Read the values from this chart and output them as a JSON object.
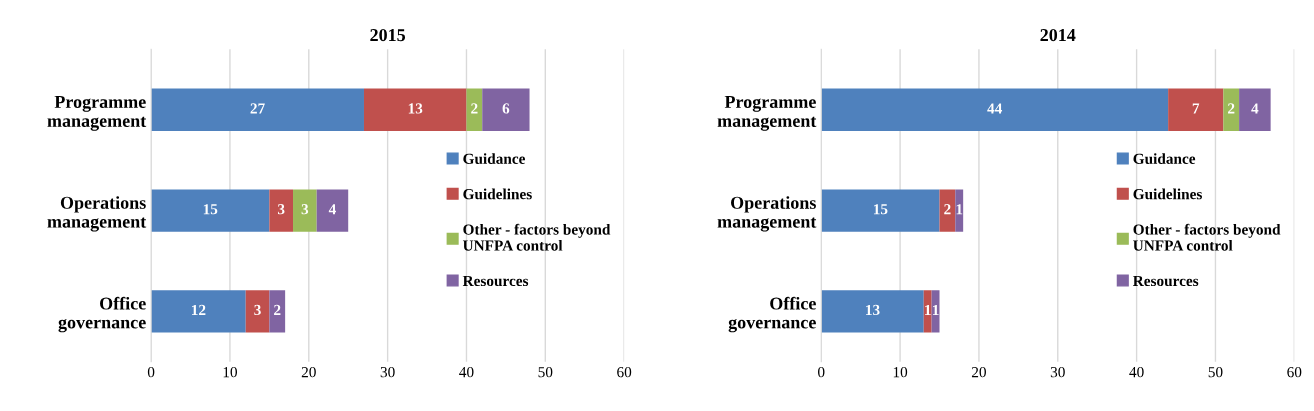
{
  "chart_data": [
    {
      "type": "bar",
      "orientation": "horizontal",
      "stacked": true,
      "title": "2015",
      "categories": [
        "Programme\nmanagement",
        "Operations\nmanagement",
        "Office\ngovernance"
      ],
      "xlim": [
        0,
        60
      ],
      "xticks": [
        0,
        10,
        20,
        30,
        40,
        50,
        60
      ],
      "grid": "x",
      "legend": "right",
      "data_labels": true,
      "series": [
        {
          "name": "Guidance",
          "color": "#4f81bd",
          "values": [
            27,
            15,
            12
          ]
        },
        {
          "name": "Guidelines",
          "color": "#c0504d",
          "values": [
            13,
            3,
            3
          ]
        },
        {
          "name": "Other - factors beyond\nUNFPA control",
          "color": "#9bbb59",
          "values": [
            2,
            3,
            null
          ]
        },
        {
          "name": "Resources",
          "color": "#8064a2",
          "values": [
            6,
            4,
            2
          ]
        }
      ]
    },
    {
      "type": "bar",
      "orientation": "horizontal",
      "stacked": true,
      "title": "2014",
      "categories": [
        "Programme\nmanagement",
        "Operations\nmanagement",
        "Office\ngovernance"
      ],
      "xlim": [
        0,
        60
      ],
      "xticks": [
        0,
        10,
        20,
        30,
        40,
        50,
        60
      ],
      "grid": "x",
      "legend": "right",
      "data_labels": true,
      "series": [
        {
          "name": "Guidance",
          "color": "#4f81bd",
          "values": [
            44,
            15,
            13
          ]
        },
        {
          "name": "Guidelines",
          "color": "#c0504d",
          "values": [
            7,
            2,
            1
          ]
        },
        {
          "name": "Other - factors beyond\nUNFPA control",
          "color": "#9bbb59",
          "values": [
            2,
            null,
            null
          ]
        },
        {
          "name": "Resources",
          "color": "#8064a2",
          "values": [
            4,
            1,
            1
          ]
        }
      ]
    }
  ]
}
